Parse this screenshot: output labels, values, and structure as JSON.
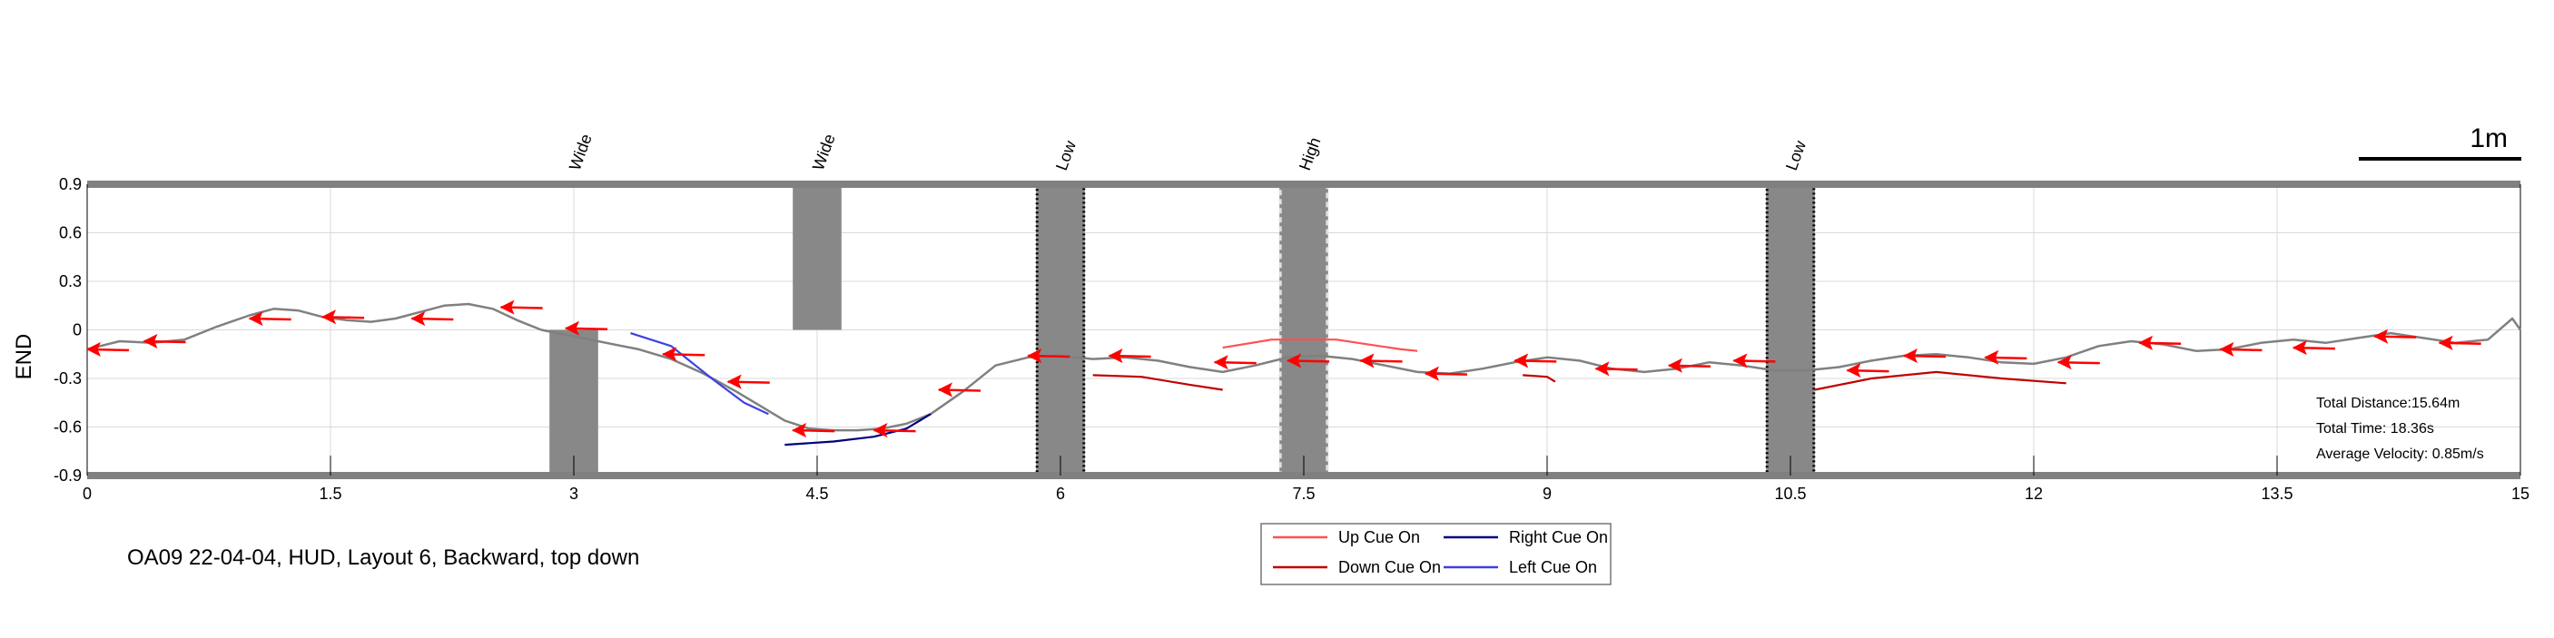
{
  "chart_data": {
    "type": "line",
    "title": "OA09 22-04-04, HUD, Layout 6, Backward, top down",
    "xlabel": "",
    "ylabel": "END",
    "xlim": [
      0,
      15
    ],
    "ylim": [
      -0.9,
      0.9
    ],
    "xticks": [
      0,
      1.5,
      3,
      4.5,
      6,
      7.5,
      9,
      10.5,
      12,
      13.5,
      15
    ],
    "xtick_labels": [
      "0",
      "1.5",
      "3",
      "4.5",
      "6",
      "7.5",
      "9",
      "10.5",
      "12",
      "13.5",
      "15"
    ],
    "yticks": [
      0.9,
      0.6,
      0.3,
      0,
      -0.3,
      -0.6,
      -0.9
    ],
    "ytick_labels": [
      "0.9",
      "0.6",
      "0.3",
      "0",
      "-0.3",
      "-0.6",
      "-0.9"
    ],
    "grid": true,
    "scale_bar_label": "1m",
    "obstacles": [
      {
        "label": "Wide",
        "x": [
          2.85,
          3.15
        ],
        "y": [
          -0.9,
          0.0
        ],
        "style": "solid"
      },
      {
        "label": "Wide",
        "x": [
          4.35,
          4.65
        ],
        "y": [
          0.0,
          0.9
        ],
        "style": "solid"
      },
      {
        "label": "Low",
        "x": [
          5.85,
          6.15
        ],
        "y": [
          -0.9,
          0.9
        ],
        "style": "dotted"
      },
      {
        "label": "High",
        "x": [
          7.35,
          7.65
        ],
        "y": [
          -0.9,
          0.9
        ],
        "style": "dashed-light"
      },
      {
        "label": "Low",
        "x": [
          10.35,
          10.65
        ],
        "y": [
          -0.9,
          0.9
        ],
        "style": "dotted"
      }
    ],
    "series": [
      {
        "name": "",
        "color": "#808080",
        "x": [
          0,
          0.2,
          0.4,
          0.6,
          0.8,
          1.0,
          1.15,
          1.3,
          1.45,
          1.6,
          1.75,
          1.9,
          2.05,
          2.2,
          2.35,
          2.5,
          2.65,
          2.8,
          3.0,
          3.2,
          3.4,
          3.6,
          3.8,
          4.0,
          4.15,
          4.3,
          4.45,
          4.6,
          4.75,
          4.9,
          5.05,
          5.2,
          5.4,
          5.6,
          5.8,
          6.0,
          6.2,
          6.4,
          6.6,
          6.8,
          7.0,
          7.2,
          7.4,
          7.6,
          7.8,
          8.0,
          8.2,
          8.4,
          8.6,
          8.8,
          9.0,
          9.2,
          9.4,
          9.6,
          9.8,
          10.0,
          10.2,
          10.4,
          10.6,
          10.8,
          11.0,
          11.2,
          11.4,
          11.6,
          11.8,
          12.0,
          12.2,
          12.4,
          12.6,
          12.8,
          13.0,
          13.2,
          13.4,
          13.6,
          13.8,
          14.0,
          14.2,
          14.4,
          14.6,
          14.8,
          14.95,
          15.0
        ],
        "y": [
          -0.12,
          -0.07,
          -0.08,
          -0.06,
          0.02,
          0.09,
          0.13,
          0.12,
          0.08,
          0.06,
          0.05,
          0.07,
          0.11,
          0.15,
          0.16,
          0.13,
          0.06,
          0.0,
          -0.04,
          -0.08,
          -0.12,
          -0.18,
          -0.27,
          -0.38,
          -0.47,
          -0.56,
          -0.61,
          -0.62,
          -0.62,
          -0.61,
          -0.58,
          -0.52,
          -0.38,
          -0.22,
          -0.17,
          -0.16,
          -0.18,
          -0.17,
          -0.19,
          -0.23,
          -0.26,
          -0.22,
          -0.17,
          -0.16,
          -0.18,
          -0.22,
          -0.26,
          -0.27,
          -0.24,
          -0.2,
          -0.17,
          -0.19,
          -0.24,
          -0.26,
          -0.24,
          -0.2,
          -0.22,
          -0.25,
          -0.25,
          -0.23,
          -0.19,
          -0.16,
          -0.15,
          -0.17,
          -0.2,
          -0.21,
          -0.17,
          -0.1,
          -0.07,
          -0.09,
          -0.13,
          -0.12,
          -0.08,
          -0.06,
          -0.08,
          -0.05,
          -0.02,
          -0.05,
          -0.08,
          -0.06,
          0.07,
          0.0
        ]
      },
      {
        "name": "Up Cue On",
        "color": "#ff5050",
        "segments": [
          {
            "x": [
              7.0,
              7.3,
              7.7,
              8.1,
              8.2
            ],
            "y": [
              -0.11,
              -0.06,
              -0.06,
              -0.12,
              -0.13
            ]
          }
        ]
      },
      {
        "name": "Down Cue On",
        "color": "#c00000",
        "segments": [
          {
            "x": [
              6.2,
              6.5,
              6.8,
              7.0
            ],
            "y": [
              -0.28,
              -0.29,
              -0.34,
              -0.37
            ]
          },
          {
            "x": [
              8.85,
              9.0,
              9.05
            ],
            "y": [
              -0.28,
              -0.29,
              -0.32
            ]
          },
          {
            "x": [
              10.65,
              11.0,
              11.4,
              11.8,
              12.2
            ],
            "y": [
              -0.37,
              -0.3,
              -0.26,
              -0.3,
              -0.33
            ]
          }
        ]
      },
      {
        "name": "Right Cue On",
        "color": "#000080",
        "segments": [
          {
            "x": [
              4.3,
              4.6,
              4.85,
              5.05,
              5.2
            ],
            "y": [
              -0.71,
              -0.69,
              -0.66,
              -0.61,
              -0.52
            ]
          }
        ]
      },
      {
        "name": "Left Cue On",
        "color": "#4040e0",
        "segments": [
          {
            "x": [
              3.35,
              3.6,
              3.85,
              4.05,
              4.2
            ],
            "y": [
              -0.02,
              -0.1,
              -0.3,
              -0.45,
              -0.52
            ]
          }
        ]
      }
    ],
    "arrows": [
      {
        "x": 0.35,
        "y": -0.07
      },
      {
        "x": 1.0,
        "y": 0.07
      },
      {
        "x": 1.45,
        "y": 0.08
      },
      {
        "x": 2.0,
        "y": 0.07
      },
      {
        "x": 2.55,
        "y": 0.14
      },
      {
        "x": 2.95,
        "y": 0.01
      },
      {
        "x": 3.55,
        "y": -0.15
      },
      {
        "x": 3.95,
        "y": -0.32
      },
      {
        "x": 4.35,
        "y": -0.62
      },
      {
        "x": 4.85,
        "y": -0.62
      },
      {
        "x": 5.25,
        "y": -0.37
      },
      {
        "x": 5.8,
        "y": -0.16
      },
      {
        "x": 6.3,
        "y": -0.16
      },
      {
        "x": 6.95,
        "y": -0.2
      },
      {
        "x": 7.4,
        "y": -0.19
      },
      {
        "x": 7.85,
        "y": -0.19
      },
      {
        "x": 8.25,
        "y": -0.27
      },
      {
        "x": 8.8,
        "y": -0.19
      },
      {
        "x": 9.3,
        "y": -0.24
      },
      {
        "x": 9.75,
        "y": -0.22
      },
      {
        "x": 10.15,
        "y": -0.19
      },
      {
        "x": 10.85,
        "y": -0.25
      },
      {
        "x": 11.2,
        "y": -0.16
      },
      {
        "x": 11.7,
        "y": -0.17
      },
      {
        "x": 12.15,
        "y": -0.2
      },
      {
        "x": 12.65,
        "y": -0.08
      },
      {
        "x": 13.15,
        "y": -0.12
      },
      {
        "x": 13.6,
        "y": -0.11
      },
      {
        "x": 14.1,
        "y": -0.04
      },
      {
        "x": 14.5,
        "y": -0.08
      },
      {
        "x": 0.0,
        "y": -0.12
      }
    ],
    "stats": {
      "total_distance": "Total Distance:15.64m",
      "total_time": "Total Time: 18.36s",
      "average_velocity": "Average Velocity: 0.85m/s"
    },
    "legend": {
      "position": "bottom-center",
      "entries": [
        {
          "label": "Up Cue On",
          "color": "#ff5050"
        },
        {
          "label": "Right Cue On",
          "color": "#000080"
        },
        {
          "label": "Down Cue On",
          "color": "#c00000"
        },
        {
          "label": "Left Cue On",
          "color": "#4040e0"
        }
      ]
    }
  }
}
